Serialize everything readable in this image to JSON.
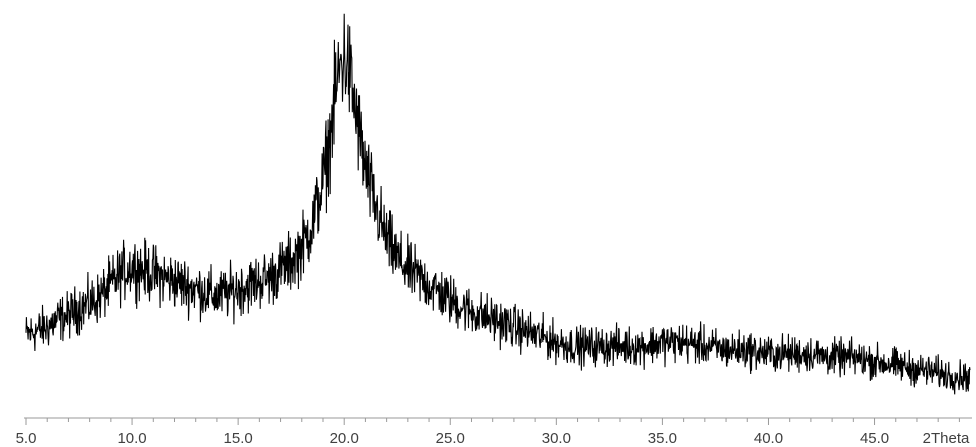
{
  "chart_data": {
    "type": "line",
    "title": "",
    "xlabel": "",
    "ylabel": "",
    "x_unit_label": "2Theta",
    "xlim": [
      5.0,
      49.5
    ],
    "ylim": [
      0,
      100
    ],
    "x_ticks": [
      5,
      10,
      15,
      20,
      25,
      30,
      35,
      40,
      45
    ],
    "x_tick_labels": [
      "5.0",
      "10.0",
      "15.0",
      "20.0",
      "25.0",
      "30.0",
      "35.0",
      "40.0",
      "45.0"
    ],
    "grid": false,
    "legend": "none",
    "line_color": "#000000",
    "series": [
      {
        "x": [
          5.0,
          5.5,
          6.0,
          6.5,
          7.0,
          7.5,
          8.0,
          8.5,
          9.0,
          9.5,
          10.0,
          10.5,
          11.0,
          11.5,
          12.0,
          12.5,
          13.0,
          13.5,
          14.0,
          14.5,
          15.0,
          15.5,
          16.0,
          16.5,
          17.0,
          17.5,
          18.0,
          18.5,
          19.0,
          19.3,
          19.6,
          19.8,
          20.0,
          20.2,
          20.4,
          20.7,
          21.0,
          21.5,
          22.0,
          22.5,
          23.0,
          23.5,
          24.0,
          25.0,
          26.0,
          27.0,
          28.0,
          29.0,
          30.0,
          31.0,
          32.0,
          33.0,
          34.0,
          35.0,
          36.0,
          37.0,
          38.0,
          39.0,
          40.0,
          41.0,
          42.0,
          43.0,
          44.0,
          45.0,
          46.0,
          47.0,
          48.0,
          49.0,
          49.5
        ],
        "y": [
          15,
          16,
          17,
          19,
          20,
          22,
          23,
          25,
          28,
          31,
          33,
          32,
          31,
          30,
          29,
          28,
          27,
          26,
          25,
          26,
          27,
          28,
          29,
          30,
          32,
          34,
          38,
          44,
          55,
          65,
          78,
          85,
          88,
          85,
          78,
          68,
          58,
          48,
          40,
          35,
          32,
          30,
          28,
          24,
          21,
          19,
          17,
          15,
          13,
          12,
          12,
          12,
          12,
          13,
          13,
          12,
          11,
          11,
          10,
          10,
          10,
          9,
          9,
          8,
          7,
          6,
          5,
          4,
          4
        ]
      }
    ]
  }
}
